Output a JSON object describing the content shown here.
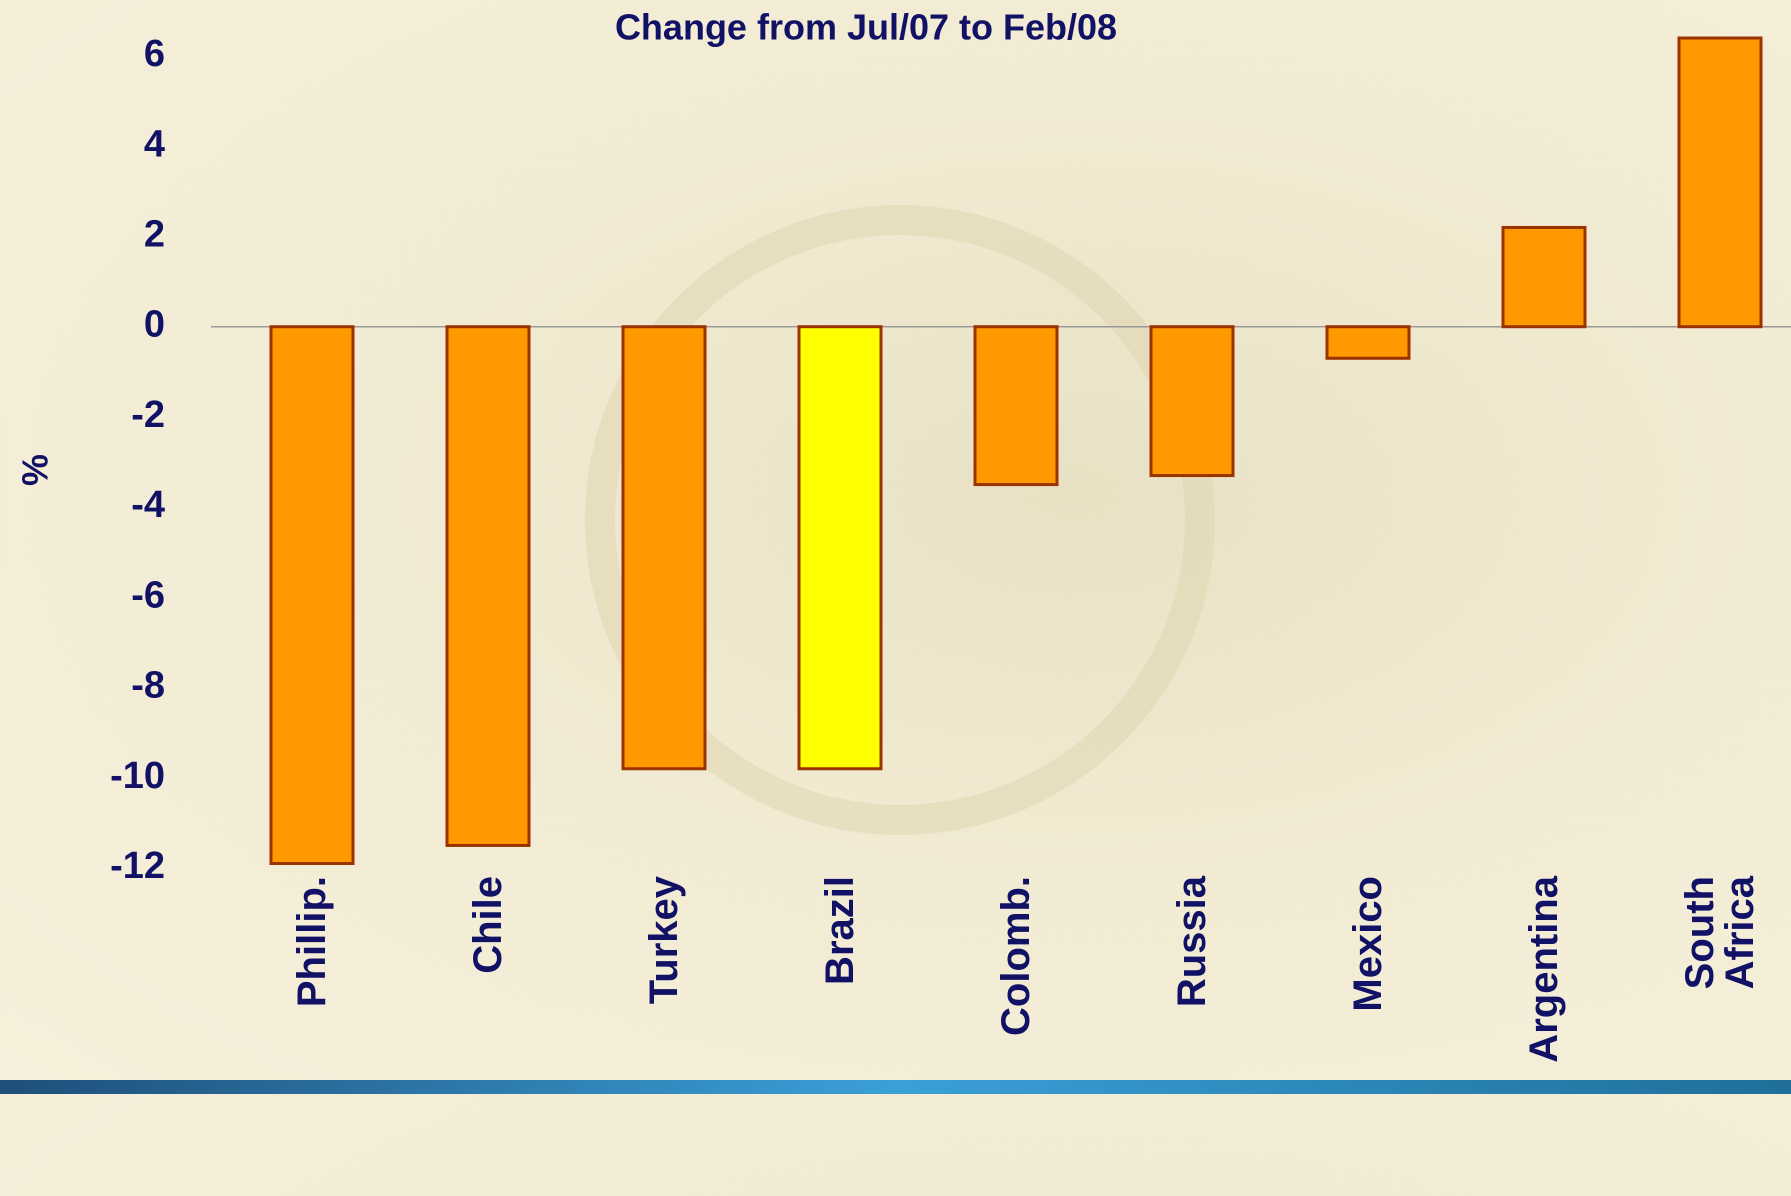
{
  "chart_data": {
    "type": "bar",
    "title": "Change from Jul/07 to Feb/08",
    "y_label": "%",
    "categories": [
      "Phillip.",
      "Chile",
      "Turkey",
      "Brazil",
      "Colomb.",
      "Russia",
      "Mexico",
      "Argentina",
      "South\nAfrica"
    ],
    "values": [
      -11.9,
      -11.5,
      -9.8,
      -9.8,
      -3.5,
      -3.3,
      -0.7,
      2.2,
      6.4
    ],
    "colors": [
      "#ff9900",
      "#ff9900",
      "#ff9900",
      "#ffff00",
      "#ff9900",
      "#ff9900",
      "#ff9900",
      "#ff9900",
      "#ff9900"
    ],
    "ylim": [
      -12,
      6.5
    ],
    "yticks": [
      -12,
      -10,
      -8,
      -6,
      -4,
      -2,
      0,
      2,
      4,
      6
    ],
    "grid": false
  }
}
